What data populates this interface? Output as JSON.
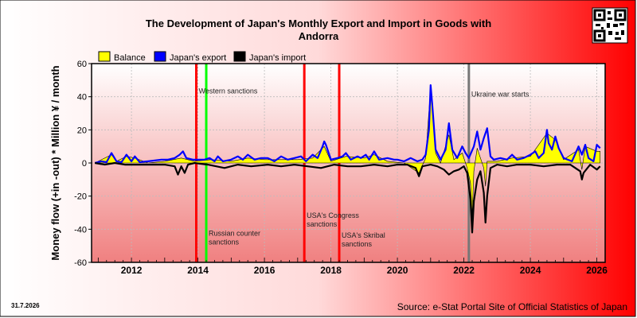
{
  "chart_data": {
    "type": "line",
    "title_lines": [
      "The Development of Japan's Monthly Export and Import in Goods with",
      "Andorra"
    ],
    "ylabel": "Money flow (+in -out) * Million ¥ / month",
    "ylim": [
      -60,
      60
    ],
    "yticks": [
      -60,
      -40,
      -20,
      0,
      20,
      40,
      60
    ],
    "xlim": [
      2010.8,
      2026.25
    ],
    "xticks": [
      2012,
      2014,
      2016,
      2018,
      2020,
      2022,
      2024,
      2026
    ],
    "grid": true,
    "legend": {
      "placement": "top-left",
      "entries": [
        {
          "label": "Balance",
          "color": "#ffff00"
        },
        {
          "label": "Japan's export",
          "color": "#0000ff"
        },
        {
          "label": "Japan's import",
          "color": "#000000"
        }
      ]
    },
    "events": [
      {
        "x": 2013.95,
        "label": "Western sanctions",
        "color": "#ff0000",
        "label_y": 42
      },
      {
        "x": 2014.25,
        "label": "Russian counter sanctions",
        "color": "#00ff00",
        "label_y": -44
      },
      {
        "x": 2017.2,
        "label": "USA's Congress sanctions",
        "color": "#ff0000",
        "label_y": -33
      },
      {
        "x": 2018.25,
        "label": "USA's Skribal sanctions",
        "color": "#ff0000",
        "label_y": -45
      },
      {
        "x": 2022.15,
        "label": "Ukraine war starts",
        "color": "#777777",
        "label_y": 40
      }
    ],
    "series": [
      {
        "name": "Japan's export",
        "color": "#0000ff",
        "points": [
          [
            2010.9,
            0
          ],
          [
            2011.1,
            1
          ],
          [
            2011.25,
            0.5
          ],
          [
            2011.4,
            6
          ],
          [
            2011.55,
            1
          ],
          [
            2011.7,
            0.5
          ],
          [
            2011.85,
            5
          ],
          [
            2012.0,
            1
          ],
          [
            2012.1,
            4
          ],
          [
            2012.25,
            0.5
          ],
          [
            2012.5,
            1
          ],
          [
            2012.9,
            2
          ],
          [
            2013.1,
            2
          ],
          [
            2013.3,
            3
          ],
          [
            2013.45,
            5
          ],
          [
            2013.55,
            7
          ],
          [
            2013.65,
            3
          ],
          [
            2013.85,
            2
          ],
          [
            2014.0,
            2
          ],
          [
            2014.2,
            2
          ],
          [
            2014.35,
            3
          ],
          [
            2014.5,
            1
          ],
          [
            2014.6,
            4
          ],
          [
            2014.75,
            1
          ],
          [
            2015.0,
            2
          ],
          [
            2015.2,
            4
          ],
          [
            2015.35,
            2
          ],
          [
            2015.5,
            5
          ],
          [
            2015.7,
            2
          ],
          [
            2015.9,
            3
          ],
          [
            2016.1,
            3
          ],
          [
            2016.3,
            1
          ],
          [
            2016.5,
            4
          ],
          [
            2016.7,
            2
          ],
          [
            2016.9,
            3
          ],
          [
            2017.1,
            4
          ],
          [
            2017.25,
            1
          ],
          [
            2017.45,
            5
          ],
          [
            2017.6,
            3
          ],
          [
            2017.75,
            10
          ],
          [
            2017.8,
            13
          ],
          [
            2017.85,
            11
          ],
          [
            2018.0,
            2
          ],
          [
            2018.2,
            3
          ],
          [
            2018.35,
            4
          ],
          [
            2018.45,
            6
          ],
          [
            2018.6,
            2
          ],
          [
            2018.8,
            4
          ],
          [
            2018.9,
            3
          ],
          [
            2019.05,
            5
          ],
          [
            2019.15,
            2
          ],
          [
            2019.3,
            7
          ],
          [
            2019.45,
            2
          ],
          [
            2019.7,
            3
          ],
          [
            2019.9,
            2
          ],
          [
            2020.0,
            2
          ],
          [
            2020.2,
            1
          ],
          [
            2020.4,
            3
          ],
          [
            2020.6,
            1
          ],
          [
            2020.75,
            2
          ],
          [
            2020.85,
            5
          ],
          [
            2020.95,
            20
          ],
          [
            2021.0,
            47
          ],
          [
            2021.05,
            35
          ],
          [
            2021.15,
            8
          ],
          [
            2021.3,
            2
          ],
          [
            2021.45,
            8
          ],
          [
            2021.55,
            24
          ],
          [
            2021.65,
            8
          ],
          [
            2021.8,
            3
          ],
          [
            2021.95,
            10
          ],
          [
            2022.05,
            6
          ],
          [
            2022.15,
            3
          ],
          [
            2022.3,
            10
          ],
          [
            2022.4,
            19
          ],
          [
            2022.5,
            8
          ],
          [
            2022.6,
            15
          ],
          [
            2022.7,
            21
          ],
          [
            2022.8,
            4
          ],
          [
            2022.9,
            2
          ],
          [
            2023.1,
            3
          ],
          [
            2023.3,
            2
          ],
          [
            2023.45,
            5
          ],
          [
            2023.6,
            2
          ],
          [
            2023.8,
            3
          ],
          [
            2024.0,
            5
          ],
          [
            2024.15,
            7
          ],
          [
            2024.25,
            3
          ],
          [
            2024.4,
            6
          ],
          [
            2024.5,
            20
          ],
          [
            2024.55,
            12
          ],
          [
            2024.65,
            8
          ],
          [
            2024.75,
            16
          ],
          [
            2024.85,
            9
          ],
          [
            2025.0,
            3
          ],
          [
            2025.25,
            1
          ],
          [
            2025.45,
            10
          ],
          [
            2025.55,
            5
          ],
          [
            2025.65,
            11
          ],
          [
            2025.75,
            3
          ],
          [
            2025.9,
            1
          ],
          [
            2026.0,
            11
          ],
          [
            2026.1,
            9
          ]
        ]
      },
      {
        "name": "Japan's import",
        "color": "#000000",
        "points": [
          [
            2010.9,
            0
          ],
          [
            2011.2,
            -1
          ],
          [
            2011.5,
            0
          ],
          [
            2011.8,
            -1
          ],
          [
            2012.2,
            -1
          ],
          [
            2012.6,
            -1
          ],
          [
            2013.0,
            -1
          ],
          [
            2013.3,
            -2
          ],
          [
            2013.4,
            -7
          ],
          [
            2013.5,
            -2
          ],
          [
            2013.6,
            -6
          ],
          [
            2013.7,
            -1
          ],
          [
            2013.9,
            0
          ],
          [
            2014.3,
            -1
          ],
          [
            2014.8,
            -3
          ],
          [
            2015.2,
            -1
          ],
          [
            2015.6,
            -2
          ],
          [
            2016.1,
            -1
          ],
          [
            2016.5,
            -2
          ],
          [
            2016.9,
            -1
          ],
          [
            2017.3,
            -2
          ],
          [
            2017.7,
            -3
          ],
          [
            2018.1,
            -1
          ],
          [
            2018.5,
            -2
          ],
          [
            2018.9,
            -2
          ],
          [
            2019.3,
            -1
          ],
          [
            2019.7,
            -2
          ],
          [
            2020.0,
            -1
          ],
          [
            2020.3,
            -1
          ],
          [
            2020.55,
            -3
          ],
          [
            2020.65,
            -8
          ],
          [
            2020.75,
            -2
          ],
          [
            2021.0,
            -1
          ],
          [
            2021.2,
            -2
          ],
          [
            2021.4,
            -4
          ],
          [
            2021.55,
            -7
          ],
          [
            2021.7,
            -5
          ],
          [
            2021.85,
            -4
          ],
          [
            2022.0,
            -2
          ],
          [
            2022.1,
            -6
          ],
          [
            2022.2,
            -22
          ],
          [
            2022.25,
            -42
          ],
          [
            2022.3,
            -23
          ],
          [
            2022.4,
            -10
          ],
          [
            2022.5,
            -5
          ],
          [
            2022.6,
            -18
          ],
          [
            2022.65,
            -36
          ],
          [
            2022.7,
            -20
          ],
          [
            2022.8,
            -3
          ],
          [
            2023.0,
            -1
          ],
          [
            2023.3,
            -2
          ],
          [
            2023.6,
            -1
          ],
          [
            2024.0,
            -1
          ],
          [
            2024.4,
            -2
          ],
          [
            2024.8,
            -1
          ],
          [
            2025.2,
            -1
          ],
          [
            2025.5,
            -5
          ],
          [
            2025.55,
            -10
          ],
          [
            2025.6,
            -6
          ],
          [
            2025.8,
            -1
          ],
          [
            2026.0,
            -4
          ],
          [
            2026.1,
            -2
          ]
        ]
      },
      {
        "name": "Balance",
        "color": "#ffff00",
        "points": [
          [
            2010.9,
            0
          ],
          [
            2011.4,
            5
          ],
          [
            2011.55,
            1
          ],
          [
            2011.85,
            4
          ],
          [
            2012.1,
            3
          ],
          [
            2012.5,
            0
          ],
          [
            2013.0,
            1
          ],
          [
            2013.5,
            3
          ],
          [
            2013.9,
            1
          ],
          [
            2014.4,
            2
          ],
          [
            2015.0,
            1
          ],
          [
            2015.5,
            3
          ],
          [
            2016.0,
            2
          ],
          [
            2016.5,
            2
          ],
          [
            2017.0,
            2
          ],
          [
            2017.45,
            3
          ],
          [
            2017.8,
            10
          ],
          [
            2018.0,
            1
          ],
          [
            2018.45,
            4
          ],
          [
            2019.0,
            3
          ],
          [
            2019.3,
            5
          ],
          [
            2019.7,
            1
          ],
          [
            2020.2,
            0
          ],
          [
            2020.65,
            -6
          ],
          [
            2020.85,
            3
          ],
          [
            2021.0,
            46
          ],
          [
            2021.15,
            6
          ],
          [
            2021.3,
            0
          ],
          [
            2021.55,
            17
          ],
          [
            2021.7,
            2
          ],
          [
            2021.95,
            6
          ],
          [
            2022.1,
            -3
          ],
          [
            2022.2,
            -12
          ],
          [
            2022.25,
            -32
          ],
          [
            2022.3,
            -5
          ],
          [
            2022.4,
            9
          ],
          [
            2022.5,
            3
          ],
          [
            2022.6,
            -3
          ],
          [
            2022.65,
            -14
          ],
          [
            2022.7,
            1
          ],
          [
            2022.8,
            1
          ],
          [
            2023.0,
            1
          ],
          [
            2023.45,
            3
          ],
          [
            2024.0,
            4
          ],
          [
            2024.5,
            18
          ],
          [
            2024.75,
            14
          ],
          [
            2025.0,
            2
          ],
          [
            2025.45,
            8
          ],
          [
            2025.55,
            -4
          ],
          [
            2025.65,
            10
          ],
          [
            2026.0,
            7
          ],
          [
            2026.1,
            7
          ]
        ]
      }
    ]
  },
  "source": "Source: e-Stat Portal Site of Official Statistics of Japan",
  "date": "31.7.2026",
  "qr_icon": "qr-code-icon"
}
